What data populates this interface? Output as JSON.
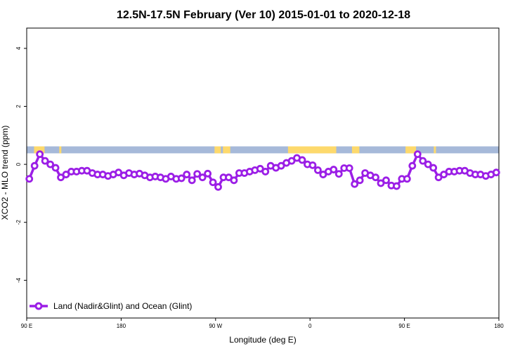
{
  "chart_data": {
    "type": "line",
    "title": "12.5N-17.5N February (Ver 10)   2015-01-01 to 2020-12-18",
    "xlabel": "Longitude (deg E)",
    "ylabel": "XCO2 - MLO trend (ppm)",
    "xlim": [
      90,
      540
    ],
    "ylim": [
      -5.3,
      4.7
    ],
    "x_ticks": [
      {
        "value": 90,
        "label": "90 E"
      },
      {
        "value": 180,
        "label": "180"
      },
      {
        "value": 270,
        "label": "90 W"
      },
      {
        "value": 360,
        "label": "0"
      },
      {
        "value": 450,
        "label": "90 E"
      },
      {
        "value": 540,
        "label": "180"
      }
    ],
    "y_ticks": [
      {
        "value": -4,
        "label": "-4"
      },
      {
        "value": -2,
        "label": "-2"
      },
      {
        "value": 0,
        "label": "0"
      },
      {
        "value": 2,
        "label": "2"
      },
      {
        "value": 4,
        "label": "4"
      }
    ],
    "grid": false,
    "legend_position": "bottom-left",
    "surface_band": {
      "y_range": [
        0.38,
        0.62
      ],
      "ocean_color": "#a6b9d9",
      "land_color": "#fdd96c",
      "land_segments": [
        [
          97,
          107
        ],
        [
          121,
          123
        ],
        [
          269,
          275
        ],
        [
          277,
          284
        ],
        [
          339,
          385
        ],
        [
          400,
          407
        ],
        [
          451,
          461
        ],
        [
          478,
          480
        ]
      ]
    },
    "series": [
      {
        "name": "Land (Nadir&Glint) and Ocean (Glint)",
        "color": "#9b1ee6",
        "x": [
          92.5,
          97.5,
          102.5,
          107.5,
          112.5,
          117.5,
          122.5,
          127.5,
          132.5,
          137.5,
          142.5,
          147.5,
          152.5,
          157.5,
          162.5,
          167.5,
          172.5,
          177.5,
          182.5,
          187.5,
          192.5,
          197.5,
          202.5,
          207.5,
          212.5,
          217.5,
          222.5,
          227.5,
          232.5,
          237.5,
          242.5,
          247.5,
          252.5,
          257.5,
          262.5,
          267.5,
          272.5,
          277.5,
          282.5,
          287.5,
          292.5,
          297.5,
          302.5,
          307.5,
          312.5,
          317.5,
          322.5,
          327.5,
          332.5,
          337.5,
          342.5,
          347.5,
          352.5,
          357.5,
          362.5,
          367.5,
          372.5,
          377.5,
          382.5,
          387.5,
          392.5,
          397.5,
          402.5,
          407.5,
          412.5,
          417.5,
          422.5,
          427.5,
          432.5,
          437.5,
          442.5,
          447.5,
          452.5,
          457.5,
          462.5,
          467.5,
          472.5,
          477.5,
          482.5,
          487.5,
          492.5,
          497.5,
          502.5,
          507.5,
          512.5,
          517.5,
          522.5,
          527.5,
          532.5,
          537.5
        ],
        "values": [
          -0.5,
          -0.05,
          0.35,
          0.12,
          0.0,
          -0.12,
          -0.45,
          -0.35,
          -0.25,
          -0.25,
          -0.22,
          -0.22,
          -0.3,
          -0.35,
          -0.35,
          -0.4,
          -0.35,
          -0.28,
          -0.38,
          -0.3,
          -0.35,
          -0.32,
          -0.38,
          -0.45,
          -0.42,
          -0.45,
          -0.5,
          -0.42,
          -0.5,
          -0.48,
          -0.35,
          -0.55,
          -0.33,
          -0.45,
          -0.32,
          -0.62,
          -0.78,
          -0.45,
          -0.45,
          -0.55,
          -0.3,
          -0.3,
          -0.25,
          -0.2,
          -0.15,
          -0.25,
          -0.05,
          -0.12,
          -0.05,
          0.05,
          0.12,
          0.22,
          0.15,
          0.0,
          -0.03,
          -0.2,
          -0.35,
          -0.25,
          -0.18,
          -0.33,
          -0.13,
          -0.13,
          -0.68,
          -0.55,
          -0.3,
          -0.38,
          -0.45,
          -0.65,
          -0.55,
          -0.73,
          -0.75,
          -0.5,
          -0.5,
          -0.05,
          0.35,
          0.12,
          0.0,
          -0.12,
          -0.45,
          -0.35,
          -0.25,
          -0.25,
          -0.22,
          -0.22,
          -0.3,
          -0.35,
          -0.35,
          -0.4,
          -0.35,
          -0.28
        ]
      }
    ]
  }
}
